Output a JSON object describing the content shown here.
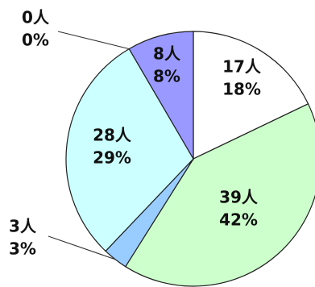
{
  "chart_data": {
    "type": "pie",
    "title": "",
    "slices": [
      {
        "count_label": "17人",
        "percent_label": "18%",
        "value": 17,
        "percent": 18,
        "color": "#ffffff"
      },
      {
        "count_label": "39人",
        "percent_label": "42%",
        "value": 39,
        "percent": 42,
        "color": "#ccffcc"
      },
      {
        "count_label": "3人",
        "percent_label": "3%",
        "value": 3,
        "percent": 3,
        "color": "#99ccff"
      },
      {
        "count_label": "28人",
        "percent_label": "29%",
        "value": 28,
        "percent": 29,
        "color": "#ccffff"
      },
      {
        "count_label": "0人",
        "percent_label": "0%",
        "value": 0,
        "percent": 0,
        "color": "#ffffff"
      },
      {
        "count_label": "8人",
        "percent_label": "8%",
        "value": 8,
        "percent": 8,
        "color": "#9999ff"
      }
    ],
    "start_angle": "12 o'clock",
    "direction": "clockwise",
    "legend": "none"
  }
}
